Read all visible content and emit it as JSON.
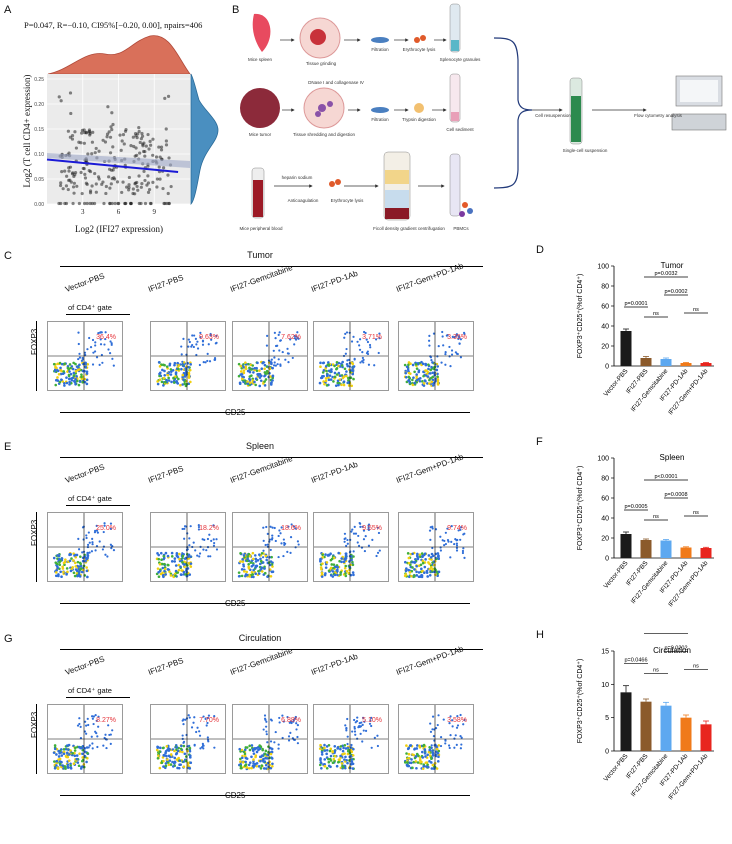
{
  "panel_A": {
    "label": "A",
    "stats": "P=0.047, R=−0.10, CI95%[−0.20, 0.00], npairs=406",
    "xlabel": "Log2 (IFI27 expression)",
    "ylabel": "Log2 (T cell CD4+ expression)",
    "chart_data": {
      "type": "scatter",
      "x_ticks": [
        "3",
        "6",
        "9"
      ],
      "y_ticks": [
        "0.00",
        "0.05",
        "0.10",
        "0.15",
        "0.20",
        "0.25"
      ],
      "xlim": [
        0,
        12
      ],
      "ylim": [
        0,
        0.26
      ],
      "fit_line": {
        "x": [
          0,
          11
        ],
        "y": [
          0.089,
          0.064
        ]
      },
      "grid": true
    }
  },
  "panel_B": {
    "label": "B",
    "row1": [
      "Mice spleen",
      "Tissue grinding",
      "Filtration",
      "Erythrocyte lysis",
      "Splenocyte granules"
    ],
    "row2_top": "DNase I and collagenase IV",
    "row2": [
      "Mice tumor",
      "Tissue shredding and digestion",
      "Filtration",
      "Trypsin digestion",
      "Cell sediment"
    ],
    "row3_top": "heparin sodium",
    "row3": [
      "Mice peripheral blood",
      "Anticoagulation",
      "Erythrocyte lysis",
      "Ficoll density gradient centrifugation",
      "PBMCs"
    ],
    "merge": [
      "Cell resuspension",
      "Single-cell suspension",
      "Flow cytometry analysis"
    ]
  },
  "groups": [
    "Vector-PBS",
    "IFI27-PBS",
    "IFI27-Gemcitabine",
    "IFI27-PD-1Ab",
    "IFI27-Gem+PD-1Ab"
  ],
  "gate_label": "of CD4⁺ gate",
  "facs_ylabel": "FOXP3",
  "facs_xlabel": "CD25",
  "panel_C": {
    "label": "C",
    "title": "Tumor",
    "pcts": [
      "36.4%",
      "9.63%",
      "7.62%",
      "3.71%",
      "3.35%"
    ]
  },
  "panel_E": {
    "label": "E",
    "title": "Spleen",
    "pcts": [
      "25.0%",
      "18.2%",
      "18.6%",
      "9.55%",
      "9.74%"
    ]
  },
  "panel_G": {
    "label": "G",
    "title": "Circulation",
    "pcts": [
      "8.27%",
      "7.70%",
      "6.88%",
      "5.10%",
      "3.58%"
    ]
  },
  "bar_ylabel": "FOXP3⁺CD25⁺(%of CD4⁺)",
  "chart_data": [
    {
      "id": "D",
      "type": "bar",
      "title": "Tumor",
      "categories": [
        "Vector-PBS",
        "IFI27-PBS",
        "IFI27-Gemcitabine",
        "IFI27-PD-1Ab",
        "IFI27-Gem+PD-1Ab"
      ],
      "values": [
        35,
        8,
        7,
        3,
        3
      ],
      "errors": [
        2,
        1.5,
        1,
        0.5,
        0.5
      ],
      "ylim": [
        0,
        100
      ],
      "yticks": [
        "0",
        "20",
        "40",
        "60",
        "80",
        "100"
      ],
      "annotations": [
        "p=0.0001",
        "ns",
        "p=0.0032",
        "p=0.0002",
        "ns"
      ]
    },
    {
      "id": "F",
      "type": "bar",
      "title": "Spleen",
      "categories": [
        "Vector-PBS",
        "IFI27-PBS",
        "IFI27-Gemcitabine",
        "IFI27-PD-1Ab",
        "IFI27-Gem+PD-1Ab"
      ],
      "values": [
        24,
        18,
        17.5,
        10.5,
        10
      ],
      "errors": [
        2,
        1,
        1,
        0.7,
        0.7
      ],
      "ylim": [
        0,
        100
      ],
      "yticks": [
        "0",
        "20",
        "40",
        "60",
        "80",
        "100"
      ],
      "annotations": [
        "p=0.0005",
        "ns",
        "p<0.0001",
        "p=0.0008",
        "ns"
      ]
    },
    {
      "id": "H",
      "type": "bar",
      "title": "Circulation",
      "categories": [
        "Vector-PBS",
        "IFI27-PBS",
        "IFI27-Gemcitabine",
        "IFI27-PD-1Ab",
        "IFI27-Gem+PD-1Ab"
      ],
      "values": [
        8.8,
        7.4,
        6.8,
        5.0,
        4.0
      ],
      "errors": [
        1.0,
        0.4,
        0.5,
        0.4,
        0.5
      ],
      "ylim": [
        0,
        15
      ],
      "yticks": [
        "0",
        "5",
        "10",
        "15"
      ],
      "annotations": [
        "p=0.0466",
        "ns",
        "p=0.0027",
        "p=0.0202",
        "ns"
      ]
    }
  ],
  "bar_colors": [
    "#1a1a1a",
    "#8b5a2b",
    "#5da8f0",
    "#f07a1a",
    "#e8251e"
  ]
}
